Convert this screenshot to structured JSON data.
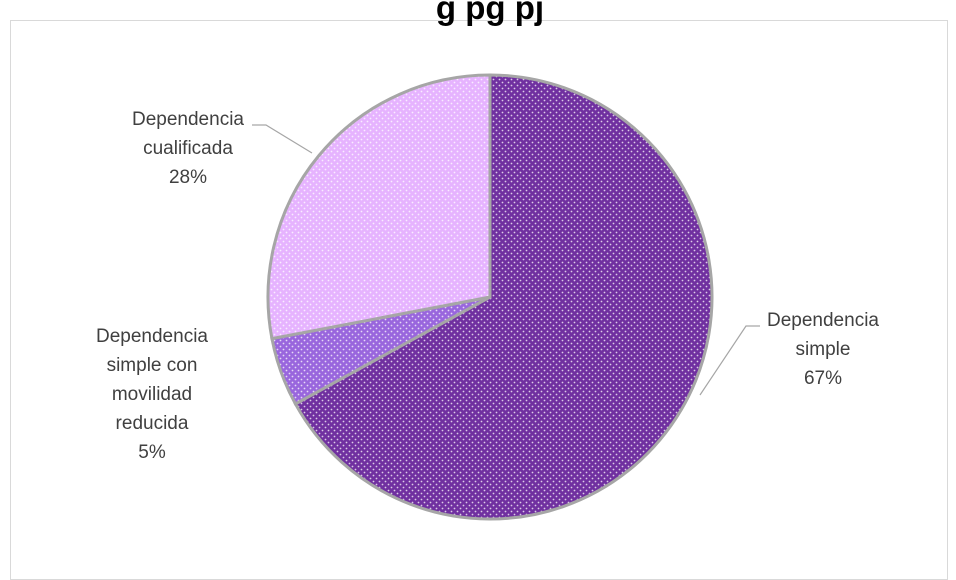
{
  "chart_data": {
    "type": "pie",
    "title": "g                      pg                    pj",
    "slices": [
      {
        "label_lines": [
          "Dependencia",
          "simple",
          "67%"
        ],
        "value": 67,
        "color": "#7030a0"
      },
      {
        "label_lines": [
          "Dependencia",
          "simple con",
          "movilidad",
          "reducida",
          "5%"
        ],
        "value": 5,
        "color": "#9966dd"
      },
      {
        "label_lines": [
          "Dependencia",
          "cualificada",
          "28%"
        ],
        "value": 28,
        "color": "#e6b3ff"
      }
    ],
    "legend": "none",
    "data_labels": "outside with leader lines",
    "pattern": "dotted"
  }
}
